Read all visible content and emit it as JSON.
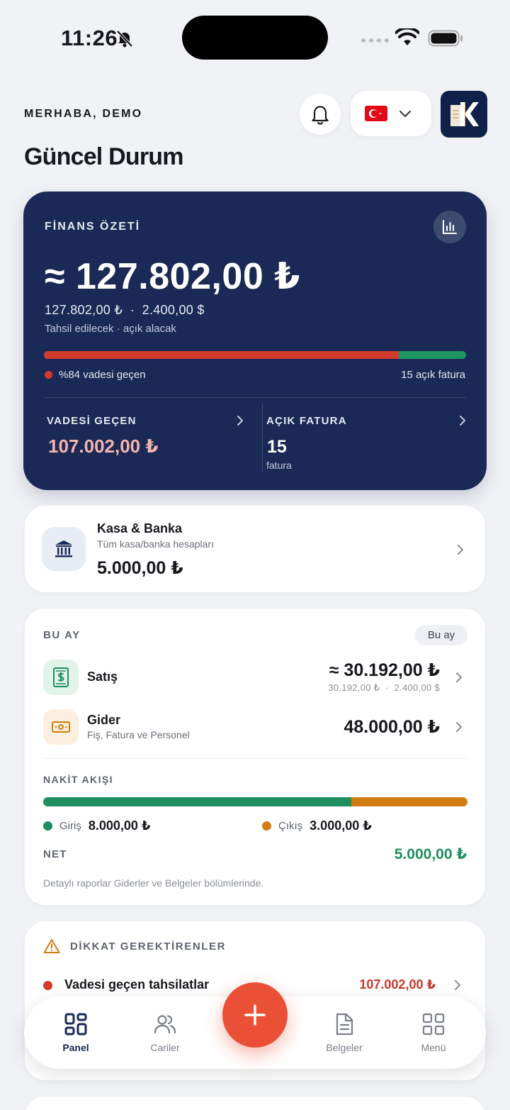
{
  "status_bar": {
    "time": "11:26"
  },
  "header": {
    "greeting": "MERHABA, DEMO",
    "title": "Güncel Durum",
    "flag": "🇹🇷"
  },
  "finance": {
    "label": "FİNANS ÖZETİ",
    "total": "≈ 127.802,00 ₺",
    "subtotal": "127.802,00 ₺  ·  2.400,00 $",
    "caption": "Tahsil edilecek · açık alacak",
    "overdue_percent": 84,
    "overdue_note": "%84 vadesi geçen",
    "open_count_note": "15 açık fatura",
    "overdue_label": "VADESİ GEÇEN",
    "overdue_amount": "107.002,00 ₺",
    "open_label": "AÇIK FATURA",
    "open_count": "15",
    "open_unit": "fatura"
  },
  "kasa": {
    "title": "Kasa & Banka",
    "subtitle": "Tüm kasa/banka hesapları",
    "amount": "5.000,00 ₺"
  },
  "this_month": {
    "label": "BU AY",
    "pill": "Bu ay",
    "sales": {
      "title": "Satış",
      "amount": "≈ 30.192,00 ₺",
      "amount_sub": "30.192,00 ₺  ·  2.400,00 $"
    },
    "expense": {
      "title": "Gider",
      "subtitle": "Fiş, Fatura ve Personel",
      "amount": "48.000,00 ₺"
    },
    "cash_flow": {
      "label": "NAKİT AKIŞI",
      "in_fraction": 0.727,
      "in_label": "Giriş",
      "in_value": "8.000,00 ₺",
      "out_label": "Çıkış",
      "out_value": "3.000,00 ₺",
      "net_label": "NET",
      "net_value": "5.000,00 ₺"
    },
    "note": "Detaylı raporlar Giderler ve Belgeler bölümlerinde."
  },
  "attention": {
    "label": "DİKKAT GEREKTİRENLER",
    "items": [
      {
        "title": "Vadesi geçen tahsilatlar",
        "amount": "107.002,00 ₺"
      }
    ]
  },
  "nav": {
    "items": [
      {
        "label": "Panel",
        "icon": "grid-icon",
        "active": true
      },
      {
        "label": "Cariler",
        "icon": "users-icon"
      },
      {
        "label": "Belgeler",
        "icon": "document-icon"
      },
      {
        "label": "Menü",
        "icon": "apps-icon"
      }
    ],
    "fab_icon": "plus-icon"
  },
  "colors": {
    "navy": "#1a2955",
    "danger": "#d23c2d",
    "success": "#1e8f5e",
    "warning": "#d17d13",
    "accent": "#ea5036"
  }
}
